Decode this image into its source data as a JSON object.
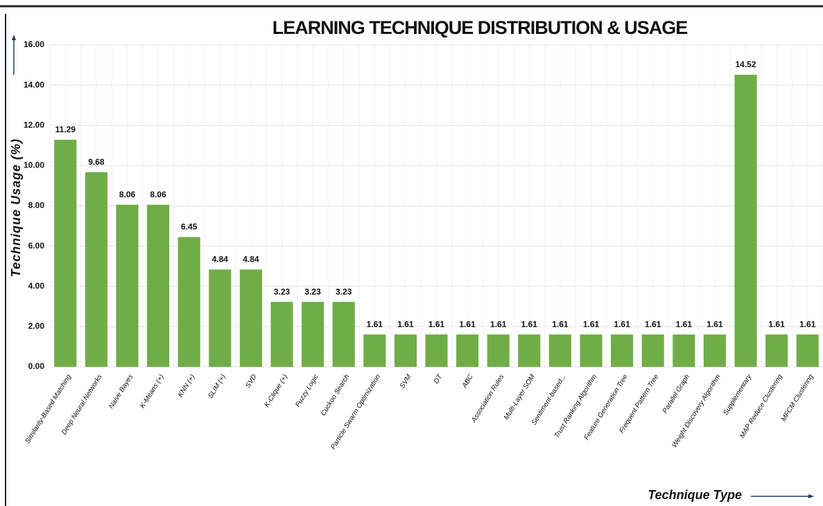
{
  "chart_data": {
    "type": "bar",
    "title": "LEARNING TECHNIQUE DISTRIBUTION & USAGE",
    "y_label": "Technique Usage (%)",
    "x_label": "Technique Type",
    "categories": [
      "Similarity-Based Matching",
      "Deep Neural Networks",
      "Naive Bayes",
      "K-Means (+)",
      "KNN (+)",
      "SLIM (+)",
      "SVD",
      "K-Clique (+)",
      "Fuzzy Logic",
      "Cuckoo Search",
      "Particle Swarm Optimization",
      "SVM",
      "DT",
      "ABC",
      "Association Rules",
      "Multi-Layer SOM",
      "Sentiment-based...",
      "Trust Ranking Algorithm",
      "Feature Generation Tree",
      "Frequent Pattern Tree",
      "Parallel Graph",
      "Weight Discovery Algorithm",
      "Supplementary",
      "MAP Reduce Clustering",
      "MFCM Clustering"
    ],
    "values": [
      11.29,
      9.68,
      8.06,
      8.06,
      6.45,
      4.84,
      4.84,
      3.23,
      3.23,
      3.23,
      1.61,
      1.61,
      1.61,
      1.61,
      1.61,
      1.61,
      1.61,
      1.61,
      1.61,
      1.61,
      1.61,
      1.61,
      14.52,
      1.61,
      1.61
    ],
    "color": "#70ad47",
    "ylim": [
      0,
      16
    ],
    "yticks": [
      {
        "value": 0,
        "label": "0.00"
      },
      {
        "value": 2,
        "label": "2.00"
      },
      {
        "value": 4,
        "label": "4.00"
      },
      {
        "value": 6,
        "label": "6.00"
      },
      {
        "value": 8,
        "label": "8.00"
      },
      {
        "value": 10,
        "label": "10.00"
      },
      {
        "value": 12,
        "label": "12.00"
      },
      {
        "value": 14,
        "label": "14.00"
      },
      {
        "value": 16,
        "label": "16.00"
      }
    ],
    "grid": true
  }
}
